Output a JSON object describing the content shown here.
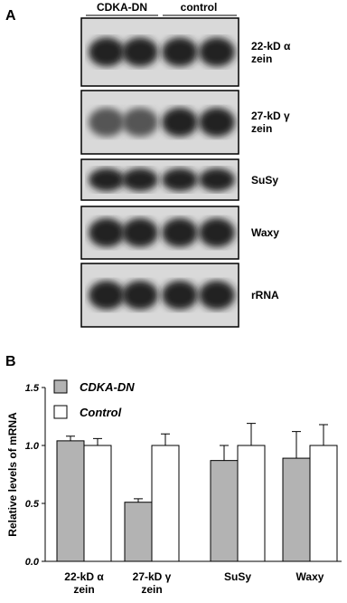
{
  "panel_a": {
    "label": "A",
    "columns": [
      "CDKA-DN",
      "control"
    ],
    "rows": [
      "22-kD α zein",
      "27-kD γ zein",
      "SuSy",
      "Waxy",
      "rRNA"
    ]
  },
  "chart_data": {
    "type": "bar",
    "label": "B",
    "y_label": "Relative levels of mRNA",
    "categories": [
      "22-kD α zein",
      "27-kD γ zein",
      "SuSy",
      "Waxy"
    ],
    "series": [
      {
        "name": "CDKA-DN",
        "color": "#b3b3b3",
        "values": [
          1.04,
          0.51,
          0.87,
          0.89
        ],
        "errors": [
          0.04,
          0.03,
          0.13,
          0.23
        ]
      },
      {
        "name": "Control",
        "color": "#ffffff",
        "values": [
          1.0,
          1.0,
          1.0,
          1.0
        ],
        "errors": [
          0.06,
          0.1,
          0.19,
          0.18
        ]
      }
    ],
    "ylim": [
      0,
      1.5
    ],
    "yticks": [
      {
        "value": 0,
        "label": "0.0"
      },
      0.5,
      {
        "value": 1,
        "label": "1.0"
      },
      1.5
    ]
  }
}
